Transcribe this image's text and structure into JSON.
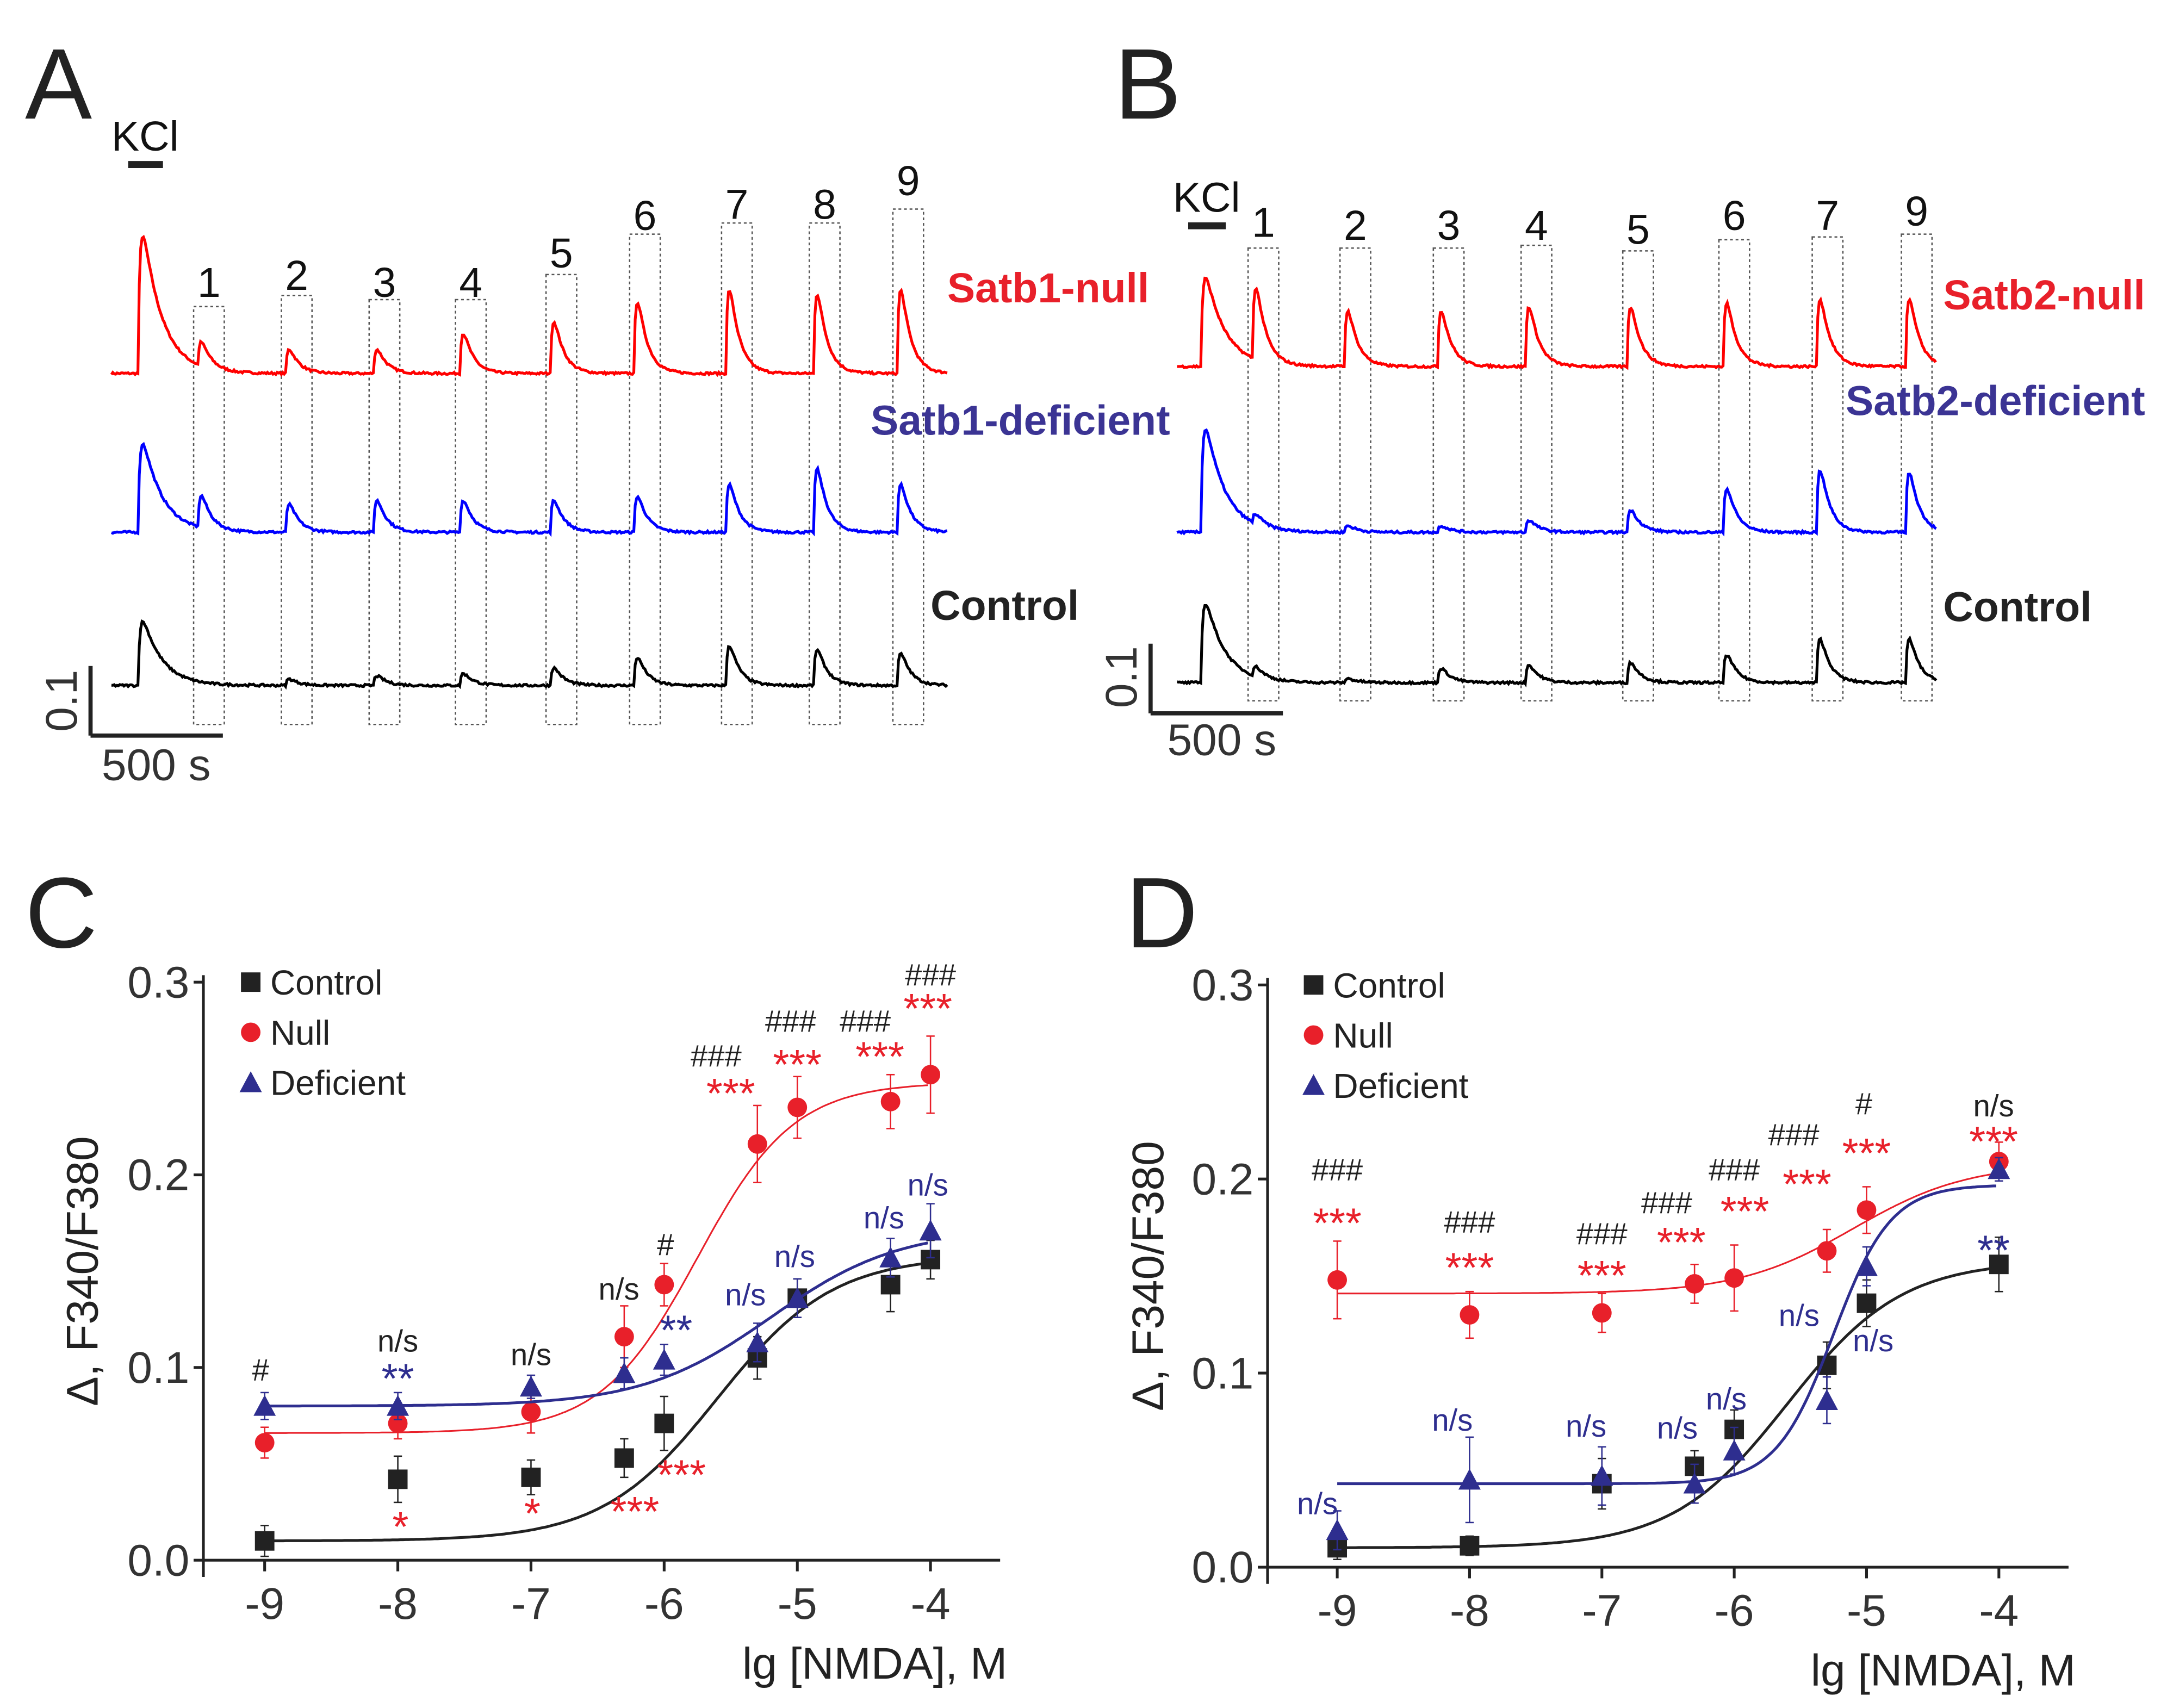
{
  "colors": {
    "null": "#e8202a",
    "deficient": "#2e2e8f",
    "control": "#222222",
    "trace_red": "#ff0000",
    "trace_blue": "#0000ff",
    "trace_black": "#000000",
    "label_blue": "#3b3494"
  },
  "panels": {
    "A": {
      "letter": "A",
      "kcl": "KCl",
      "stim_labels": [
        "1",
        "2",
        "3",
        "4",
        "5",
        "6",
        "7",
        "8",
        "9"
      ],
      "scale": {
        "vertical": "0.1",
        "horizontal": "500 s"
      },
      "traces": [
        {
          "label": "Satb1-null",
          "color_key": "trace_red",
          "label_color_key": "null",
          "kcl_amp": 0.28,
          "amps": [
            0.06,
            0.06,
            0.06,
            0.1,
            0.13,
            0.18,
            0.21,
            0.2,
            0.21
          ]
        },
        {
          "label": "Satb1-deficient",
          "color_key": "trace_blue",
          "label_color_key": "label_blue",
          "kcl_amp": 0.18,
          "amps": [
            0.08,
            0.07,
            0.08,
            0.08,
            0.08,
            0.09,
            0.12,
            0.16,
            0.12
          ]
        },
        {
          "label": "Control",
          "color_key": "trace_black",
          "label_color_key": "control",
          "kcl_amp": 0.13,
          "amps": [
            0.0,
            0.016,
            0.024,
            0.03,
            0.044,
            0.07,
            0.1,
            0.09,
            0.08
          ]
        }
      ]
    },
    "B": {
      "letter": "B",
      "kcl": "KCl",
      "stim_labels": [
        "1",
        "2",
        "3",
        "4",
        "5",
        "6",
        "7",
        "9"
      ],
      "scale": {
        "vertical": "0.1",
        "horizontal": "500 s"
      },
      "traces": [
        {
          "label": "Satb2-null",
          "color_key": "trace_red",
          "label_color_key": "null",
          "kcl_amp": 0.18,
          "amps": [
            0.18,
            0.14,
            0.14,
            0.15,
            0.15,
            0.16,
            0.17,
            0.17
          ]
        },
        {
          "label": "Satb2-deficient",
          "color_key": "trace_blue",
          "label_color_key": "label_blue",
          "kcl_amp": 0.21,
          "amps": [
            0.024,
            0.016,
            0.016,
            0.03,
            0.056,
            0.11,
            0.156,
            0.15
          ]
        },
        {
          "label": "Control",
          "color_key": "trace_black",
          "label_color_key": "control",
          "kcl_amp": 0.16,
          "amps": [
            0.024,
            0.01,
            0.036,
            0.044,
            0.05,
            0.07,
            0.11,
            0.11
          ]
        }
      ]
    }
  },
  "chart_data": [
    {
      "panel": "C",
      "type": "scatter",
      "xlabel": "lg [NMDA], M",
      "ylabel": "Δ, F340/F380",
      "xlim": [
        -9.5,
        -3.5
      ],
      "ylim": [
        0,
        0.3
      ],
      "xticks": [
        "-9",
        "-8",
        "-7",
        "-6",
        "-5",
        "-4"
      ],
      "yticks": [
        "0.0",
        "0.1",
        "0.2",
        "0.3"
      ],
      "legend_position": "top-left",
      "x": [
        -9,
        -8,
        -7,
        -6.3,
        -6,
        -5.3,
        -5,
        -4.3,
        -4
      ],
      "series": [
        {
          "name": "Control",
          "marker": "square",
          "color_key": "control",
          "values": [
            0.01,
            0.042,
            0.043,
            0.053,
            0.071,
            0.105,
            0.136,
            0.143,
            0.156
          ],
          "errors": [
            0.008,
            0.012,
            0.009,
            0.01,
            0.014,
            0.011,
            0.01,
            0.014,
            0.01
          ],
          "fit": {
            "bottom": 0.01,
            "top": 0.158,
            "logec50": -5.6,
            "hill": 1.0
          }
        },
        {
          "name": "Null",
          "marker": "circle",
          "color_key": "null",
          "values": [
            0.061,
            0.071,
            0.077,
            0.116,
            0.143,
            0.216,
            0.235,
            0.238,
            0.252
          ],
          "errors": [
            0.008,
            0.008,
            0.011,
            0.016,
            0.011,
            0.02,
            0.016,
            0.014,
            0.02
          ],
          "fit": {
            "bottom": 0.066,
            "top": 0.248,
            "logec50": -5.75,
            "hill": 1.2
          }
        },
        {
          "name": "Deficient",
          "marker": "triangle",
          "color_key": "deficient",
          "values": [
            0.08,
            0.08,
            0.09,
            0.097,
            0.104,
            0.113,
            0.136,
            0.157,
            0.171
          ],
          "errors": [
            0.007,
            0.007,
            0.006,
            0.008,
            0.008,
            0.01,
            0.01,
            0.01,
            0.014
          ],
          "fit": {
            "bottom": 0.08,
            "top": 0.172,
            "logec50": -5.2,
            "hill": 0.9
          }
        }
      ],
      "annotations": [
        {
          "x": -9.03,
          "y": 0.099,
          "text": "#",
          "color_key": "control"
        },
        {
          "x": -8,
          "y": 0.114,
          "text": "n/s",
          "color_key": "control"
        },
        {
          "x": -8,
          "y": 0.097,
          "text": "**",
          "color_key": "deficient"
        },
        {
          "x": -7,
          "y": 0.107,
          "text": "n/s",
          "color_key": "control"
        },
        {
          "x": -6.34,
          "y": 0.141,
          "text": "n/s",
          "color_key": "control"
        },
        {
          "x": -5.99,
          "y": 0.164,
          "text": "#",
          "color_key": "control"
        },
        {
          "x": -5.91,
          "y": 0.122,
          "text": "**",
          "color_key": "deficient"
        },
        {
          "x": -5.39,
          "y": 0.138,
          "text": "n/s",
          "color_key": "deficient"
        },
        {
          "x": -5.02,
          "y": 0.158,
          "text": "n/s",
          "color_key": "deficient"
        },
        {
          "x": -4.35,
          "y": 0.178,
          "text": "n/s",
          "color_key": "deficient"
        },
        {
          "x": -4.02,
          "y": 0.195,
          "text": "n/s",
          "color_key": "deficient"
        },
        {
          "x": -5.61,
          "y": 0.262,
          "text": "###",
          "color_key": "control"
        },
        {
          "x": -5.5,
          "y": 0.245,
          "text": "***",
          "color_key": "null"
        },
        {
          "x": -5.05,
          "y": 0.28,
          "text": "###",
          "color_key": "control"
        },
        {
          "x": -5.0,
          "y": 0.26,
          "text": "***",
          "color_key": "null"
        },
        {
          "x": -4.49,
          "y": 0.28,
          "text": "###",
          "color_key": "control"
        },
        {
          "x": -4.38,
          "y": 0.264,
          "text": "***",
          "color_key": "null"
        },
        {
          "x": -4.0,
          "y": 0.304,
          "text": "###",
          "color_key": "control"
        },
        {
          "x": -4.02,
          "y": 0.289,
          "text": "***",
          "color_key": "null"
        },
        {
          "x": -7.98,
          "y": 0.02,
          "text": "*",
          "color_key": "null"
        },
        {
          "x": -6.99,
          "y": 0.027,
          "text": "*",
          "color_key": "null"
        },
        {
          "x": -6.22,
          "y": 0.028,
          "text": "***",
          "color_key": "null"
        },
        {
          "x": -5.87,
          "y": 0.047,
          "text": "***",
          "color_key": "null"
        }
      ]
    },
    {
      "panel": "D",
      "type": "scatter",
      "xlabel": "lg [NMDA], M",
      "ylabel": "Δ, F340/F380",
      "xlim": [
        -9.5,
        -3.5
      ],
      "ylim": [
        0,
        0.3
      ],
      "xticks": [
        "-9",
        "-8",
        "-7",
        "-6",
        "-5",
        "-4"
      ],
      "yticks": [
        "0.0",
        "0.1",
        "0.2",
        "0.3"
      ],
      "legend_position": "top-left",
      "x": [
        -9,
        -8,
        -7,
        -6.3,
        -6,
        -5.3,
        -5,
        -4
      ],
      "series": [
        {
          "name": "Control",
          "marker": "square",
          "color_key": "control",
          "values": [
            0.01,
            0.011,
            0.043,
            0.052,
            0.071,
            0.104,
            0.136,
            0.156
          ],
          "errors": [
            0.006,
            0.005,
            0.013,
            0.008,
            0.01,
            0.012,
            0.012,
            0.014
          ],
          "fit": {
            "bottom": 0.01,
            "top": 0.158,
            "logec50": -5.6,
            "hill": 1.0
          }
        },
        {
          "name": "Null",
          "marker": "circle",
          "color_key": "null",
          "values": [
            0.148,
            0.13,
            0.131,
            0.146,
            0.149,
            0.163,
            0.184,
            0.209
          ],
          "errors": [
            0.02,
            0.012,
            0.01,
            0.01,
            0.017,
            0.011,
            0.012,
            0.01
          ],
          "fit": {
            "bottom": 0.141,
            "top": 0.208,
            "logec50": -5.1,
            "hill": 1.0
          }
        },
        {
          "name": "Deficient",
          "marker": "triangle",
          "color_key": "deficient",
          "values": [
            0.019,
            0.045,
            0.047,
            0.043,
            0.06,
            0.086,
            0.155,
            0.205
          ],
          "errors": [
            0.01,
            0.022,
            0.015,
            0.01,
            0.012,
            0.012,
            0.01,
            0.006
          ],
          "fit": {
            "bottom": 0.043,
            "top": 0.197,
            "logec50": -5.25,
            "hill": 2.0
          }
        }
      ],
      "annotations": [
        {
          "x": -9,
          "y": 0.205,
          "text": "###",
          "color_key": "control"
        },
        {
          "x": -9,
          "y": 0.18,
          "text": "***",
          "color_key": "null"
        },
        {
          "x": -8,
          "y": 0.178,
          "text": "###",
          "color_key": "control"
        },
        {
          "x": -8,
          "y": 0.157,
          "text": "***",
          "color_key": "null"
        },
        {
          "x": -7,
          "y": 0.172,
          "text": "###",
          "color_key": "control"
        },
        {
          "x": -7,
          "y": 0.153,
          "text": "***",
          "color_key": "null"
        },
        {
          "x": -6.51,
          "y": 0.188,
          "text": "###",
          "color_key": "control"
        },
        {
          "x": -6.4,
          "y": 0.17,
          "text": "***",
          "color_key": "null"
        },
        {
          "x": -6.0,
          "y": 0.205,
          "text": "###",
          "color_key": "control"
        },
        {
          "x": -5.92,
          "y": 0.186,
          "text": "***",
          "color_key": "null"
        },
        {
          "x": -5.55,
          "y": 0.223,
          "text": "###",
          "color_key": "control"
        },
        {
          "x": -5.45,
          "y": 0.2,
          "text": "***",
          "color_key": "null"
        },
        {
          "x": -5.02,
          "y": 0.239,
          "text": "#",
          "color_key": "control"
        },
        {
          "x": -5.0,
          "y": 0.216,
          "text": "***",
          "color_key": "null"
        },
        {
          "x": -4.04,
          "y": 0.238,
          "text": "n/s",
          "color_key": "control"
        },
        {
          "x": -4.04,
          "y": 0.222,
          "text": "***",
          "color_key": "null"
        },
        {
          "x": -4.04,
          "y": 0.166,
          "text": "**",
          "color_key": "deficient"
        },
        {
          "x": -9.15,
          "y": 0.033,
          "text": "n/s",
          "color_key": "deficient"
        },
        {
          "x": -8.13,
          "y": 0.076,
          "text": "n/s",
          "color_key": "deficient"
        },
        {
          "x": -7.12,
          "y": 0.073,
          "text": "n/s",
          "color_key": "deficient"
        },
        {
          "x": -6.43,
          "y": 0.072,
          "text": "n/s",
          "color_key": "deficient"
        },
        {
          "x": -6.06,
          "y": 0.087,
          "text": "n/s",
          "color_key": "deficient"
        },
        {
          "x": -5.51,
          "y": 0.13,
          "text": "n/s",
          "color_key": "deficient"
        },
        {
          "x": -4.95,
          "y": 0.117,
          "text": "n/s",
          "color_key": "deficient"
        }
      ]
    }
  ]
}
